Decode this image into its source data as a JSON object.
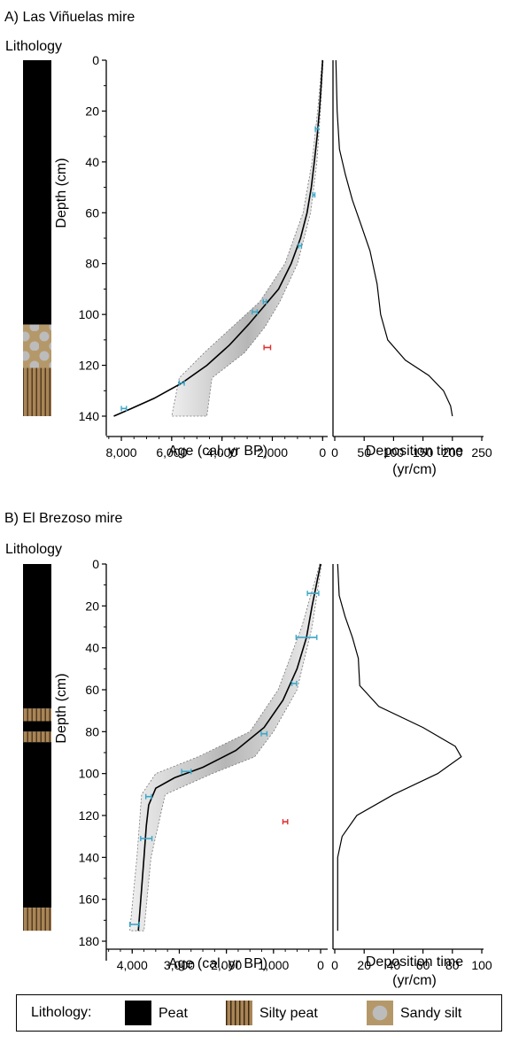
{
  "colors": {
    "peat": "#000000",
    "silty_peat": "#a98556",
    "sandy_silt": "#b59869",
    "sandy_silt_dots": "#bcbcbc",
    "date_marker": "#3aa7c9",
    "outlier_marker": "#e03030",
    "model_line": "#000000"
  },
  "legend": {
    "title": "Lithology:",
    "items": [
      {
        "label": "Peat",
        "pattern": "peat"
      },
      {
        "label": "Silty peat",
        "pattern": "silty_peat"
      },
      {
        "label": "Sandy silt",
        "pattern": "sandy_silt"
      }
    ]
  },
  "chart_data": [
    {
      "type": "line",
      "panel_title": "A) Las Viñuelas mire",
      "lithology_label": "Lithology",
      "lithology": [
        {
          "from_cm": 0,
          "to_cm": 104,
          "unit": "peat"
        },
        {
          "from_cm": 104,
          "to_cm": 121,
          "unit": "sandy_silt"
        },
        {
          "from_cm": 121,
          "to_cm": 140,
          "unit": "silty_peat"
        }
      ],
      "age_depth": {
        "xlabel": "Age (cal. yr BP)",
        "ylabel": "Depth (cm)",
        "x_reversed": true,
        "xlim": [
          8600,
          -200
        ],
        "ylim": [
          0,
          140
        ],
        "xticks": [
          8000,
          6000,
          4000,
          2000,
          0
        ],
        "xtick_labels": [
          "8,000",
          "6,000",
          "4,000",
          "2,000",
          "0"
        ],
        "yticks": [
          0,
          20,
          40,
          60,
          80,
          100,
          120,
          140
        ],
        "model_curve": [
          {
            "age": 0,
            "depth": 0
          },
          {
            "age": 60,
            "depth": 10
          },
          {
            "age": 130,
            "depth": 20
          },
          {
            "age": 220,
            "depth": 30
          },
          {
            "age": 330,
            "depth": 40
          },
          {
            "age": 450,
            "depth": 50
          },
          {
            "age": 620,
            "depth": 60
          },
          {
            "age": 880,
            "depth": 70
          },
          {
            "age": 1250,
            "depth": 80
          },
          {
            "age": 1750,
            "depth": 90
          },
          {
            "age": 2350,
            "depth": 97
          },
          {
            "age": 2950,
            "depth": 104
          },
          {
            "age": 3700,
            "depth": 112
          },
          {
            "age": 4600,
            "depth": 120
          },
          {
            "age": 5600,
            "depth": 127
          },
          {
            "age": 6700,
            "depth": 133
          },
          {
            "age": 7600,
            "depth": 137
          },
          {
            "age": 8300,
            "depth": 140
          }
        ],
        "uncertainty_envelope": [
          {
            "depth": 0,
            "older": 20,
            "younger": -20
          },
          {
            "depth": 20,
            "older": 200,
            "younger": 90
          },
          {
            "depth": 40,
            "older": 420,
            "younger": 230
          },
          {
            "depth": 60,
            "older": 780,
            "younger": 480
          },
          {
            "depth": 80,
            "older": 1500,
            "younger": 1000
          },
          {
            "depth": 95,
            "older": 2500,
            "younger": 1700
          },
          {
            "depth": 105,
            "older": 3600,
            "younger": 2300
          },
          {
            "depth": 115,
            "older": 4700,
            "younger": 3100
          },
          {
            "depth": 125,
            "older": 5700,
            "younger": 4400
          },
          {
            "depth": 140,
            "older": 6000,
            "younger": 4600
          }
        ],
        "dates": [
          {
            "age": 230,
            "depth": 27,
            "err": 60
          },
          {
            "age": 350,
            "depth": 53,
            "err": 40
          },
          {
            "age": 900,
            "depth": 73,
            "err": 60
          },
          {
            "age": 2300,
            "depth": 95,
            "err": 60
          },
          {
            "age": 2700,
            "depth": 99,
            "err": 100
          },
          {
            "age": 5600,
            "depth": 127,
            "err": 100
          },
          {
            "age": 7900,
            "depth": 137,
            "err": 100
          }
        ],
        "outliers": [
          {
            "age": 2200,
            "depth": 113,
            "err": 130
          }
        ]
      },
      "deposition": {
        "xlabel": "Deposition time",
        "xlabel2": "(yr/cm)",
        "xlim": [
          0,
          250
        ],
        "ylim": [
          0,
          140
        ],
        "xticks": [
          0,
          50,
          100,
          150,
          200,
          250
        ],
        "curve": [
          {
            "x": 2,
            "y": 0
          },
          {
            "x": 4,
            "y": 20
          },
          {
            "x": 8,
            "y": 35
          },
          {
            "x": 18,
            "y": 45
          },
          {
            "x": 30,
            "y": 55
          },
          {
            "x": 45,
            "y": 65
          },
          {
            "x": 60,
            "y": 75
          },
          {
            "x": 72,
            "y": 88
          },
          {
            "x": 78,
            "y": 100
          },
          {
            "x": 90,
            "y": 110
          },
          {
            "x": 120,
            "y": 118
          },
          {
            "x": 160,
            "y": 124
          },
          {
            "x": 185,
            "y": 130
          },
          {
            "x": 197,
            "y": 136
          },
          {
            "x": 200,
            "y": 140
          }
        ]
      }
    },
    {
      "type": "line",
      "panel_title": "B) El Brezoso mire",
      "lithology_label": "Lithology",
      "lithology": [
        {
          "from_cm": 0,
          "to_cm": 69,
          "unit": "peat"
        },
        {
          "from_cm": 69,
          "to_cm": 75,
          "unit": "silty_peat"
        },
        {
          "from_cm": 75,
          "to_cm": 80,
          "unit": "peat"
        },
        {
          "from_cm": 80,
          "to_cm": 85,
          "unit": "silty_peat"
        },
        {
          "from_cm": 85,
          "to_cm": 164,
          "unit": "peat"
        },
        {
          "from_cm": 164,
          "to_cm": 175,
          "unit": "silty_peat"
        }
      ],
      "age_depth": {
        "xlabel": "Age (cal. yr BP)",
        "ylabel": "Depth (cm)",
        "x_reversed": true,
        "xlim": [
          4550,
          -150
        ],
        "ylim": [
          0,
          180
        ],
        "xticks": [
          4000,
          3000,
          2000,
          1000,
          0
        ],
        "xtick_labels": [
          "4,000",
          "3,000",
          "2,000",
          "1,000",
          "0"
        ],
        "yticks": [
          0,
          20,
          40,
          60,
          80,
          100,
          120,
          140,
          160,
          180
        ],
        "model_curve": [
          {
            "age": 0,
            "depth": 0
          },
          {
            "age": 90,
            "depth": 10
          },
          {
            "age": 180,
            "depth": 20
          },
          {
            "age": 300,
            "depth": 35
          },
          {
            "age": 500,
            "depth": 50
          },
          {
            "age": 800,
            "depth": 65
          },
          {
            "age": 1200,
            "depth": 78
          },
          {
            "age": 1800,
            "depth": 89
          },
          {
            "age": 2500,
            "depth": 97
          },
          {
            "age": 3100,
            "depth": 102
          },
          {
            "age": 3500,
            "depth": 107
          },
          {
            "age": 3650,
            "depth": 115
          },
          {
            "age": 3700,
            "depth": 125
          },
          {
            "age": 3750,
            "depth": 140
          },
          {
            "age": 3800,
            "depth": 155
          },
          {
            "age": 3870,
            "depth": 175
          }
        ],
        "uncertainty_envelope": [
          {
            "depth": 0,
            "older": 20,
            "younger": -20
          },
          {
            "depth": 30,
            "older": 400,
            "younger": 180
          },
          {
            "depth": 60,
            "older": 900,
            "younger": 500
          },
          {
            "depth": 80,
            "older": 1500,
            "younger": 1000
          },
          {
            "depth": 92,
            "older": 2600,
            "younger": 1400
          },
          {
            "depth": 100,
            "older": 3500,
            "younger": 2300
          },
          {
            "depth": 110,
            "older": 3800,
            "younger": 3300
          },
          {
            "depth": 140,
            "older": 3900,
            "younger": 3600
          },
          {
            "depth": 175,
            "older": 4050,
            "younger": 3750
          }
        ],
        "dates": [
          {
            "age": 160,
            "depth": 14,
            "err": 120
          },
          {
            "age": 300,
            "depth": 35,
            "err": 220
          },
          {
            "age": 560,
            "depth": 57,
            "err": 50
          },
          {
            "age": 1200,
            "depth": 81,
            "err": 60
          },
          {
            "age": 2850,
            "depth": 99,
            "err": 100
          },
          {
            "age": 3650,
            "depth": 111,
            "err": 60
          },
          {
            "age": 3700,
            "depth": 131,
            "err": 120
          },
          {
            "age": 3950,
            "depth": 172,
            "err": 100
          }
        ],
        "outliers": [
          {
            "age": 750,
            "depth": 123,
            "err": 50
          }
        ]
      },
      "deposition": {
        "xlabel": "Deposition time",
        "xlabel2": "(yr/cm)",
        "xlim": [
          0,
          100
        ],
        "ylim": [
          0,
          180
        ],
        "xticks": [
          0,
          20,
          40,
          60,
          80,
          100
        ],
        "curve": [
          {
            "x": 2,
            "y": 0
          },
          {
            "x": 3,
            "y": 15
          },
          {
            "x": 7,
            "y": 25
          },
          {
            "x": 12,
            "y": 35
          },
          {
            "x": 16,
            "y": 45
          },
          {
            "x": 17,
            "y": 58
          },
          {
            "x": 30,
            "y": 68
          },
          {
            "x": 60,
            "y": 78
          },
          {
            "x": 82,
            "y": 87
          },
          {
            "x": 86,
            "y": 92
          },
          {
            "x": 70,
            "y": 100
          },
          {
            "x": 40,
            "y": 110
          },
          {
            "x": 15,
            "y": 120
          },
          {
            "x": 5,
            "y": 130
          },
          {
            "x": 2,
            "y": 140
          },
          {
            "x": 2,
            "y": 175
          }
        ]
      }
    }
  ]
}
